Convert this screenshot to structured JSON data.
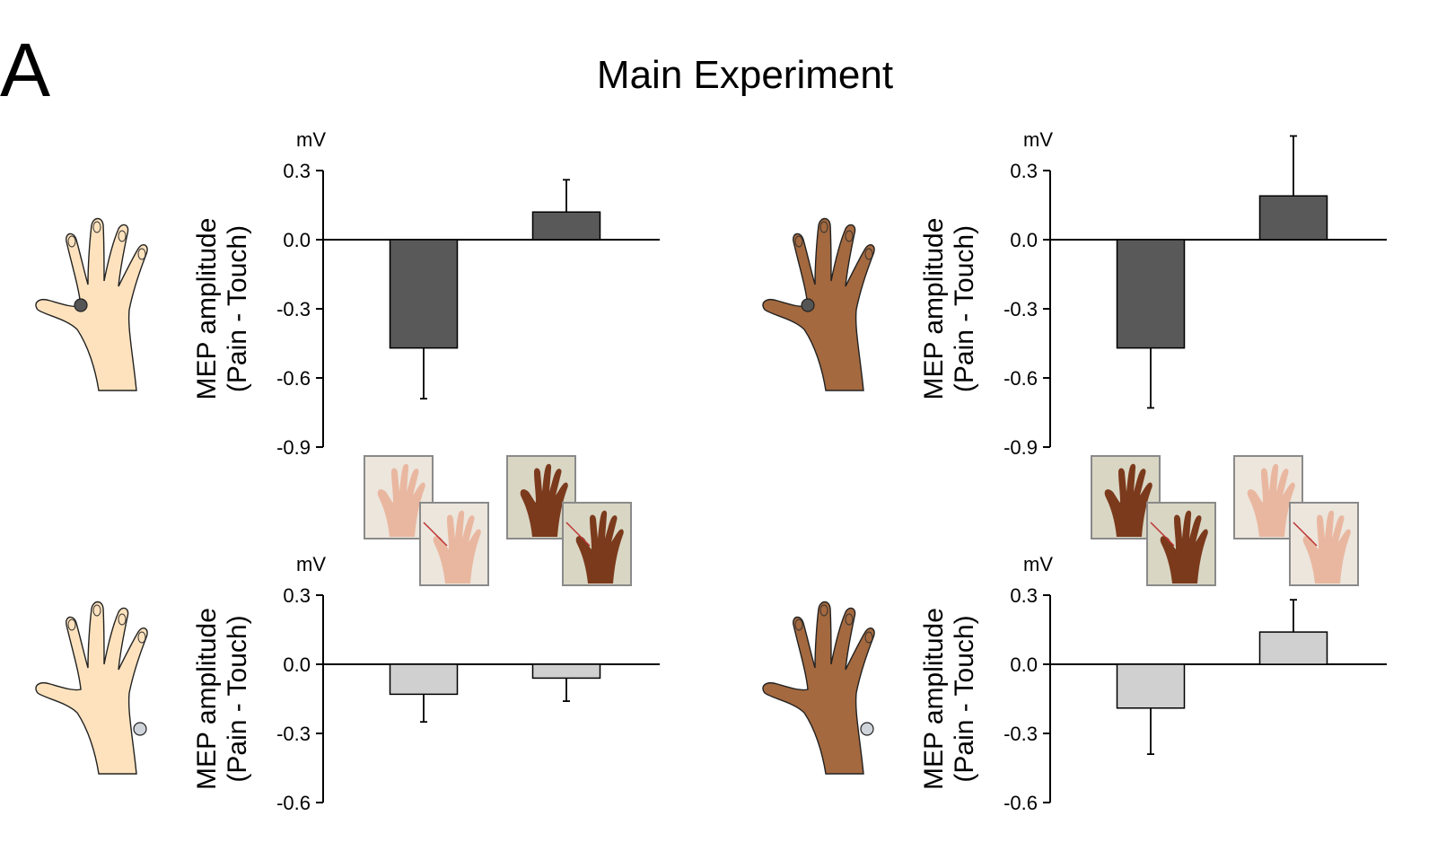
{
  "figure": {
    "panel_label": "A",
    "title": "Main Experiment"
  },
  "colors": {
    "dark_bar": "#595959",
    "light_bar": "#d0d0d0",
    "skin_light": "#fde2bd",
    "skin_dark": "#a4693f",
    "thumbnail_frame": "#8a8a8a"
  },
  "chart_data": [
    {
      "id": "top-left",
      "type": "bar",
      "unit": "mV",
      "ylabel": [
        "MEP amplitude",
        "(Pain - Touch)"
      ],
      "yticks": [
        "0.3",
        "0.0",
        "-0.3",
        "-0.6",
        "-0.9"
      ],
      "ylim": [
        -0.9,
        0.3
      ],
      "bar_color": "dark",
      "hand": "light",
      "muscle_site": "thumb",
      "values": [
        -0.47,
        0.12
      ],
      "errors": [
        0.22,
        0.14
      ],
      "stimuli": [
        "light",
        "dark"
      ]
    },
    {
      "id": "top-right",
      "type": "bar",
      "unit": "mV",
      "ylabel": [
        "MEP amplitude",
        "(Pain - Touch)"
      ],
      "yticks": [
        "0.3",
        "0.0",
        "-0.3",
        "-0.6",
        "-0.9"
      ],
      "ylim": [
        -0.9,
        0.3
      ],
      "bar_color": "dark",
      "hand": "dark",
      "muscle_site": "thumb",
      "values": [
        -0.47,
        0.19
      ],
      "errors": [
        0.26,
        0.26
      ],
      "stimuli": [
        "dark",
        "light"
      ]
    },
    {
      "id": "bottom-left",
      "type": "bar",
      "unit": "mV",
      "ylabel": [
        "MEP amplitude",
        "(Pain - Touch)"
      ],
      "yticks": [
        "0.3",
        "0.0",
        "-0.3",
        "-0.6"
      ],
      "ylim": [
        -0.6,
        0.3
      ],
      "bar_color": "light",
      "hand": "light",
      "muscle_site": "little-finger",
      "values": [
        -0.13,
        -0.06
      ],
      "errors": [
        0.12,
        0.1
      ],
      "stimuli": []
    },
    {
      "id": "bottom-right",
      "type": "bar",
      "unit": "mV",
      "ylabel": [
        "MEP amplitude",
        "(Pain - Touch)"
      ],
      "yticks": [
        "0.3",
        "0.0",
        "-0.3",
        "-0.6"
      ],
      "ylim": [
        -0.6,
        0.3
      ],
      "bar_color": "light",
      "hand": "dark",
      "muscle_site": "little-finger",
      "values": [
        -0.19,
        0.14
      ],
      "errors": [
        0.2,
        0.14
      ],
      "stimuli": []
    }
  ]
}
